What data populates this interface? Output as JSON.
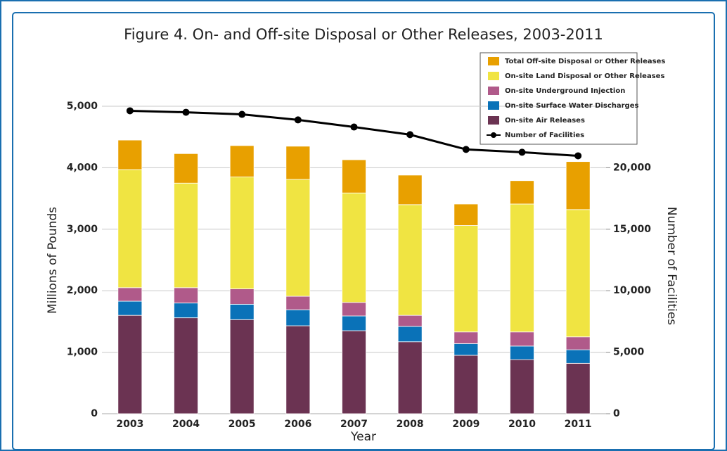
{
  "chart_data": {
    "type": "stacked-bar-line",
    "title": "Figure 4. On- and Off-site Disposal or Other Releases, 2003-2011",
    "xlabel": "Year",
    "ylabel": "Millions of Pounds",
    "y2label": "Number of Facilities",
    "categories": [
      "2003",
      "2004",
      "2005",
      "2006",
      "2007",
      "2008",
      "2009",
      "2010",
      "2011"
    ],
    "series": [
      {
        "name": "On-site Air Releases",
        "color": "#6b3352",
        "values": [
          1600,
          1560,
          1530,
          1430,
          1350,
          1170,
          950,
          880,
          820
        ]
      },
      {
        "name": "On-site Surface Water Discharges",
        "color": "#0a72b8",
        "values": [
          230,
          240,
          250,
          260,
          240,
          250,
          190,
          220,
          220
        ]
      },
      {
        "name": "On-site Underground  Injection",
        "color": "#b05a8a",
        "values": [
          220,
          250,
          250,
          220,
          220,
          180,
          190,
          230,
          210
        ]
      },
      {
        "name": "On-site Land Disposal or Other Releases",
        "color": "#f0e442",
        "values": [
          1920,
          1700,
          1820,
          1900,
          1780,
          1800,
          1730,
          2080,
          2070
        ]
      },
      {
        "name": "Total Off-site Disposal or Other Releases",
        "color": "#e8a000",
        "values": [
          480,
          480,
          510,
          540,
          540,
          480,
          350,
          380,
          780
        ]
      },
      {
        "name": "Number of Facilities",
        "color": "#000000",
        "axis": "y2",
        "values": [
          24630,
          24510,
          24340,
          23890,
          23310,
          22690,
          21490,
          21260,
          20970
        ]
      }
    ],
    "ylim": [
      0,
      5000
    ],
    "yticks": [
      0,
      {
        "value": 1000,
        "label": "1,000"
      },
      {
        "value": 2000,
        "label": "2,000"
      },
      {
        "value": 3000,
        "label": "3,000"
      },
      {
        "value": 4000,
        "label": "4,000"
      },
      {
        "value": 5000,
        "label": "5,000"
      }
    ],
    "y2lim": [
      0,
      25000
    ],
    "y2ticks": [
      0,
      {
        "value": 5000,
        "label": "5,000"
      },
      {
        "value": 10000,
        "label": "10,000"
      },
      {
        "value": 15000,
        "label": "15,000"
      },
      {
        "value": 20000,
        "label": "20,000"
      }
    ],
    "grid": true
  }
}
